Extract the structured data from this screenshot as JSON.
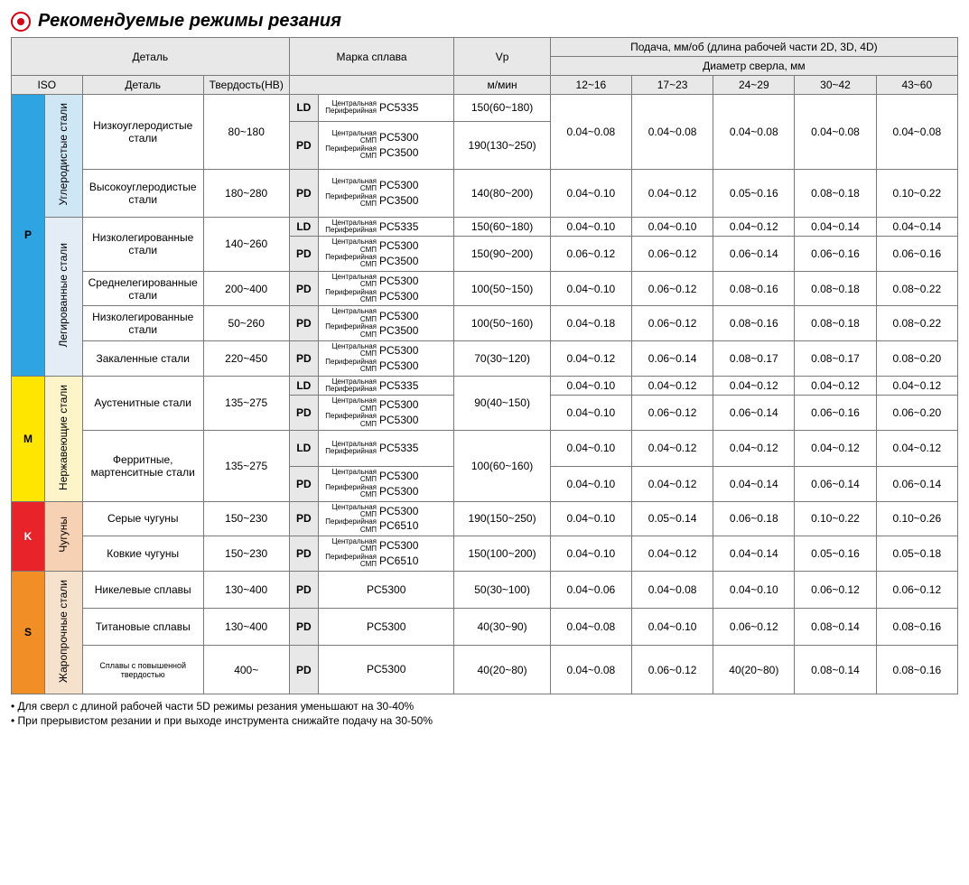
{
  "title": "Рекомендуемые режимы резания",
  "headers": {
    "detail": "Деталь",
    "alloy_grade": "Марка сплава",
    "vp": "Vp",
    "feed": "Подача, мм/об (длина рабочей части 2D, 3D,  4D)",
    "drill_dia": "Диаметр сверла, мм",
    "iso": "ISO",
    "detail2": "Деталь",
    "hardness": "Твердость(HB)",
    "m_min": "м/мин",
    "dia_ranges": [
      "12~16",
      "17~23",
      "24~29",
      "30~42",
      "43~60"
    ]
  },
  "alloy_labels": {
    "central_periph": "Центральная Периферийная",
    "central_smp": "Центральная СМП",
    "periph_smp": "Периферийная СМП"
  },
  "iso_groups": [
    {
      "code": "P",
      "cls": "iso-P",
      "subgroups": [
        {
          "name": "Углеродистые стали",
          "cls": "grp-carbon",
          "details": [
            {
              "name": "Низкоуглеродистые стали",
              "hb": "80~180",
              "rows": [
                {
                  "tag": "LD",
                  "alloys": [
                    {
                      "lbl": "central_periph",
                      "code": "PC5335"
                    }
                  ],
                  "vp": "150(60~180)",
                  "feed_merge": "next"
                },
                {
                  "tag": "PD",
                  "alloys": [
                    {
                      "lbl": "central_smp",
                      "code": "PC5300"
                    },
                    {
                      "lbl": "periph_smp",
                      "code": "PC3500"
                    }
                  ],
                  "vp": "190(130~250)",
                  "feeds": [
                    "0.04~0.08",
                    "0.04~0.08",
                    "0.04~0.08",
                    "0.04~0.08",
                    "0.04~0.08"
                  ]
                }
              ]
            },
            {
              "name": "Высокоуглеродистые стали",
              "hb": "180~280",
              "rows": [
                {
                  "tag": "PD",
                  "alloys": [
                    {
                      "lbl": "central_smp",
                      "code": "PC5300"
                    },
                    {
                      "lbl": "periph_smp",
                      "code": "PC3500"
                    }
                  ],
                  "vp": "140(80~200)",
                  "feeds": [
                    "0.04~0.10",
                    "0.04~0.12",
                    "0.05~0.16",
                    "0.08~0.18",
                    "0.10~0.22"
                  ]
                }
              ]
            }
          ]
        },
        {
          "name": "Легированные стали",
          "cls": "grp-alloy",
          "details": [
            {
              "name": "Низколегированные стали",
              "hb": "140~260",
              "rows": [
                {
                  "tag": "LD",
                  "alloys": [
                    {
                      "lbl": "central_periph",
                      "code": "PC5335"
                    }
                  ],
                  "vp": "150(60~180)",
                  "feeds": [
                    "0.04~0.10",
                    "0.04~0.10",
                    "0.04~0.12",
                    "0.04~0.14",
                    "0.04~0.14"
                  ]
                },
                {
                  "tag": "PD",
                  "alloys": [
                    {
                      "lbl": "central_smp",
                      "code": "PC5300"
                    },
                    {
                      "lbl": "periph_smp",
                      "code": "PC3500"
                    }
                  ],
                  "vp": "150(90~200)",
                  "feeds": [
                    "0.06~0.12",
                    "0.06~0.12",
                    "0.06~0.14",
                    "0.06~0.16",
                    "0.06~0.16"
                  ]
                }
              ]
            },
            {
              "name": "Среднелегированные стали",
              "hb": "200~400",
              "rows": [
                {
                  "tag": "PD",
                  "alloys": [
                    {
                      "lbl": "central_smp",
                      "code": "PC5300"
                    },
                    {
                      "lbl": "periph_smp",
                      "code": "PC5300"
                    }
                  ],
                  "vp": "100(50~150)",
                  "feeds": [
                    "0.04~0.10",
                    "0.06~0.12",
                    "0.08~0.16",
                    "0.08~0.18",
                    "0.08~0.22"
                  ]
                }
              ]
            },
            {
              "name": "Низколегированные стали",
              "hb": "50~260",
              "rows": [
                {
                  "tag": "PD",
                  "alloys": [
                    {
                      "lbl": "central_smp",
                      "code": "PC5300"
                    },
                    {
                      "lbl": "periph_smp",
                      "code": "PC3500"
                    }
                  ],
                  "vp": "100(50~160)",
                  "feeds": [
                    "0.04~0.18",
                    "0.06~0.12",
                    "0.08~0.16",
                    "0.08~0.18",
                    "0.08~0.22"
                  ]
                }
              ]
            },
            {
              "name": "Закаленные стали",
              "hb": "220~450",
              "rows": [
                {
                  "tag": "PD",
                  "alloys": [
                    {
                      "lbl": "central_smp",
                      "code": "PC5300"
                    },
                    {
                      "lbl": "periph_smp",
                      "code": "PC5300"
                    }
                  ],
                  "vp": "70(30~120)",
                  "feeds": [
                    "0.04~0.12",
                    "0.06~0.14",
                    "0.08~0.17",
                    "0.08~0.17",
                    "0.08~0.20"
                  ]
                }
              ]
            }
          ]
        }
      ]
    },
    {
      "code": "M",
      "cls": "iso-M",
      "subgroups": [
        {
          "name": "Нержавеющие стали",
          "cls": "grp-stainless",
          "details": [
            {
              "name": "Аустенитные стали",
              "hb": "135~275",
              "rows": [
                {
                  "tag": "LD",
                  "alloys": [
                    {
                      "lbl": "central_periph",
                      "code": "PC5335"
                    }
                  ],
                  "vp_merge": "next",
                  "feeds": [
                    "0.04~0.10",
                    "0.04~0.12",
                    "0.04~0.12",
                    "0.04~0.12",
                    "0.04~0.12"
                  ]
                },
                {
                  "tag": "PD",
                  "alloys": [
                    {
                      "lbl": "central_smp",
                      "code": "PC5300"
                    },
                    {
                      "lbl": "periph_smp",
                      "code": "PC5300"
                    }
                  ],
                  "vp": "90(40~150)",
                  "feeds": [
                    "0.04~0.10",
                    "0.06~0.12",
                    "0.06~0.14",
                    "0.06~0.16",
                    "0.06~0.20"
                  ]
                }
              ]
            },
            {
              "name": "Ферритные, мартенситные стали",
              "hb": "135~275",
              "rows": [
                {
                  "tag": "LD",
                  "alloys": [
                    {
                      "lbl": "central_periph",
                      "code": "PC5335"
                    }
                  ],
                  "vp_merge": "next",
                  "feeds": [
                    "0.04~0.10",
                    "0.04~0.12",
                    "0.04~0.12",
                    "0.04~0.12",
                    "0.04~0.12"
                  ]
                },
                {
                  "tag": "PD",
                  "alloys": [
                    {
                      "lbl": "central_smp",
                      "code": "PC5300"
                    },
                    {
                      "lbl": "periph_smp",
                      "code": "PC5300"
                    }
                  ],
                  "vp": "100(60~160)",
                  "feeds": [
                    "0.04~0.10",
                    "0.04~0.12",
                    "0.04~0.14",
                    "0.06~0.14",
                    "0.06~0.14"
                  ]
                }
              ]
            }
          ]
        }
      ]
    },
    {
      "code": "K",
      "cls": "iso-K",
      "subgroups": [
        {
          "name": "Чугуны",
          "cls": "grp-cast",
          "details": [
            {
              "name": "Серые чугуны",
              "hb": "150~230",
              "rows": [
                {
                  "tag": "PD",
                  "alloys": [
                    {
                      "lbl": "central_smp",
                      "code": "PC5300"
                    },
                    {
                      "lbl": "periph_smp",
                      "code": "PC6510"
                    }
                  ],
                  "vp": "190(150~250)",
                  "feeds": [
                    "0.04~0.10",
                    "0.05~0.14",
                    "0.06~0.18",
                    "0.10~0.22",
                    "0.10~0.26"
                  ]
                }
              ]
            },
            {
              "name": "Ковкие чугуны",
              "hb": "150~230",
              "rows": [
                {
                  "tag": "PD",
                  "alloys": [
                    {
                      "lbl": "central_smp",
                      "code": "PC5300"
                    },
                    {
                      "lbl": "periph_smp",
                      "code": "PC6510"
                    }
                  ],
                  "vp": "150(100~200)",
                  "feeds": [
                    "0.04~0.10",
                    "0.04~0.12",
                    "0.04~0.14",
                    "0.05~0.16",
                    "0.05~0.18"
                  ]
                }
              ]
            }
          ]
        }
      ]
    },
    {
      "code": "S",
      "cls": "iso-S",
      "subgroups": [
        {
          "name": "Жаропрочные стали",
          "cls": "grp-heat",
          "details": [
            {
              "name": "Никелевые сплавы",
              "hb": "130~400",
              "small": true,
              "rows": [
                {
                  "tag": "PD",
                  "alloys": [
                    {
                      "code": "PC5300"
                    }
                  ],
                  "vp": "50(30~100)",
                  "feeds": [
                    "0.04~0.06",
                    "0.04~0.08",
                    "0.04~0.10",
                    "0.06~0.12",
                    "0.06~0.12"
                  ]
                }
              ]
            },
            {
              "name": "Титановые сплавы",
              "hb": "130~400",
              "small": true,
              "rows": [
                {
                  "tag": "PD",
                  "alloys": [
                    {
                      "code": "PC5300"
                    }
                  ],
                  "vp": "40(30~90)",
                  "feeds": [
                    "0.04~0.08",
                    "0.04~0.10",
                    "0.06~0.12",
                    "0.08~0.14",
                    "0.08~0.16"
                  ]
                }
              ]
            },
            {
              "name": "Сплавы с повышенной твердостью",
              "hb": "400~",
              "small": true,
              "tiny": true,
              "rows": [
                {
                  "tag": "PD",
                  "alloys": [
                    {
                      "code": "PC5300"
                    }
                  ],
                  "vp": "40(20~80)",
                  "feeds": [
                    "0.04~0.08",
                    "0.06~0.12",
                    "40(20~80)",
                    "0.08~0.14",
                    "0.08~0.16"
                  ]
                }
              ]
            }
          ]
        }
      ]
    }
  ],
  "notes": [
    "• Для сверл с длиной рабочей части 5D режимы резания уменьшают на 30-40%",
    "• При прерывистом резании и при выходе инструмента снижайте подачу на 30-50%"
  ]
}
